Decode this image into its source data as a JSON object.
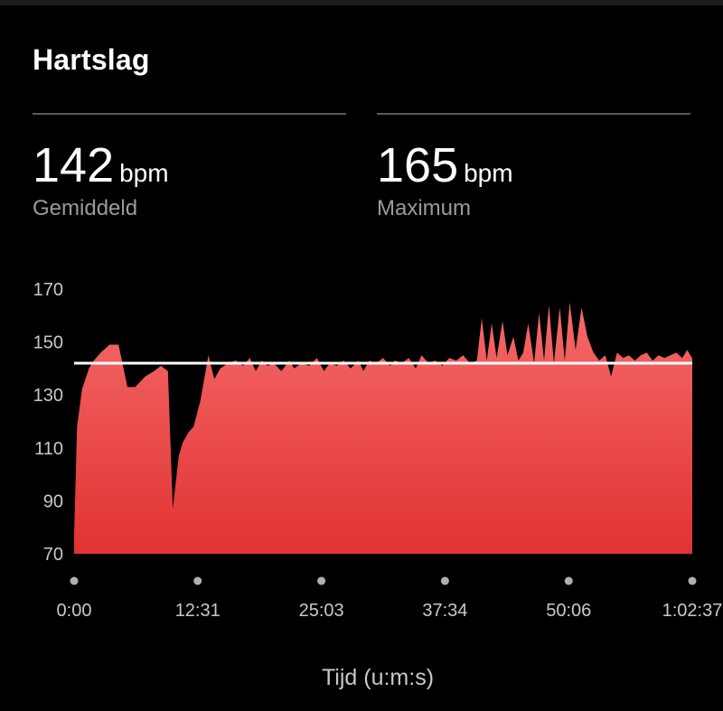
{
  "header": {
    "title": "Hartslag"
  },
  "stats": {
    "average": {
      "value": "142",
      "unit": "bpm",
      "label": "Gemiddeld"
    },
    "maximum": {
      "value": "165",
      "unit": "bpm",
      "label": "Maximum"
    }
  },
  "colors": {
    "fill_top": "#f46a6a",
    "fill_bottom": "#e23232",
    "average_line": "#ffffff",
    "tick_text": "#c8c8c8"
  },
  "chart_data": {
    "type": "area",
    "xlabel": "Tijd (u:m:s)",
    "ylabel": "",
    "xlim_seconds": [
      0,
      3757
    ],
    "ylim": [
      70,
      170
    ],
    "y_ticks": [
      170,
      150,
      130,
      110,
      90,
      70
    ],
    "x_ticks": [
      {
        "seconds": 0,
        "label": "0:00"
      },
      {
        "seconds": 751,
        "label": "12:31"
      },
      {
        "seconds": 1503,
        "label": "25:03"
      },
      {
        "seconds": 2254,
        "label": "37:34"
      },
      {
        "seconds": 3006,
        "label": "50:06"
      },
      {
        "seconds": 3757,
        "label": "1:02:37"
      }
    ],
    "average_line": 142,
    "series": [
      {
        "x_minutes": [
          0,
          0.3,
          0.8,
          1.5,
          2,
          2.7,
          3.6,
          4.5,
          5.4,
          6.2,
          7.2,
          8.1,
          8.8,
          9.5,
          10,
          10.6,
          11,
          11.6,
          12.1,
          12.8,
          13.6,
          14.2,
          14.8,
          15.6,
          16.4,
          17.1,
          17.8,
          18.4,
          19,
          19.6,
          20.2,
          21,
          21.8,
          22.3,
          23,
          23.8,
          24.6,
          25.3,
          25.9,
          26.6,
          27.3,
          28,
          28.8,
          29.3,
          29.9,
          30.6,
          31.3,
          32,
          32.5,
          33.2,
          33.9,
          34.6,
          35.2,
          35.9,
          36.6,
          37.3,
          38,
          38.7,
          39.4,
          40.1,
          40.8,
          41.3,
          41.8,
          42.3,
          42.8,
          43.4,
          43.9,
          44.5,
          45,
          45.5,
          46,
          46.6,
          47.1,
          47.6,
          48.1,
          48.6,
          49.2,
          49.7,
          50.2,
          50.8,
          51.4,
          52,
          52.6,
          53.2,
          53.8,
          54.4,
          55,
          55.6,
          56.2,
          56.8,
          57.4,
          58,
          58.6,
          59.2,
          59.8,
          60.4,
          61,
          61.6,
          62.1,
          62.6
        ],
        "values": [
          77,
          118,
          132,
          140,
          143,
          146,
          149,
          149,
          133,
          133,
          137,
          139,
          141,
          139,
          87,
          107,
          112,
          116,
          118,
          128,
          145,
          136,
          140,
          142,
          143,
          141,
          144,
          139,
          143,
          141,
          142,
          139,
          143,
          140,
          142,
          141,
          144,
          139,
          142,
          141,
          143,
          140,
          143,
          139,
          143,
          142,
          144,
          141,
          143,
          142,
          144,
          140,
          145,
          142,
          143,
          141,
          144,
          143,
          145,
          142,
          143,
          159,
          143,
          157,
          144,
          158,
          145,
          152,
          143,
          146,
          157,
          142,
          161,
          143,
          164,
          142,
          163,
          143,
          165,
          147,
          163,
          152,
          146,
          143,
          145,
          137,
          146,
          144,
          145,
          143,
          145,
          146,
          143,
          145,
          144,
          145,
          146,
          144,
          147,
          144
        ]
      }
    ]
  }
}
